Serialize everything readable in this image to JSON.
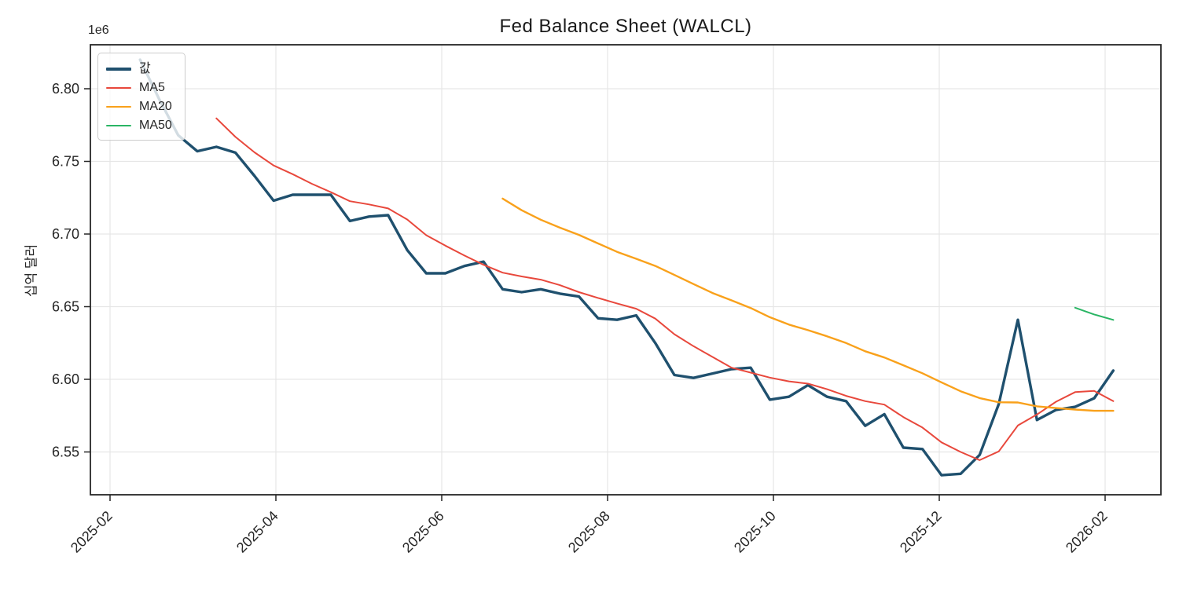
{
  "chart": {
    "title": "Fed Balance Sheet (WALCL)",
    "ylabel": "십억 달러",
    "y_offset_label": "1e6",
    "background_color": "#ffffff",
    "grid_color": "#e6e6e6",
    "spine_color": "#262626",
    "tick_text_color": "#262626"
  },
  "legend": {
    "position": "upper left",
    "items": [
      {
        "label": "값",
        "color": "#1f506e",
        "thickness": 4
      },
      {
        "label": "MA5",
        "color": "#e8483c",
        "thickness": 2
      },
      {
        "label": "MA20",
        "color": "#f9a11b",
        "thickness": 2.5
      },
      {
        "label": "MA50",
        "color": "#2ab564",
        "thickness": 2
      }
    ]
  },
  "chart_data": {
    "type": "line",
    "title": "Fed Balance Sheet (WALCL)",
    "xlabel": "",
    "ylabel": "십억 달러",
    "y_offset": "1e6",
    "grid": true,
    "legend_position": "upper left",
    "x_tick_labels": [
      "2025-02",
      "2025-04",
      "2025-06",
      "2025-08",
      "2025-10",
      "2025-12",
      "2026-02"
    ],
    "y_tick_labels": [
      "6.80",
      "6.75",
      "6.70",
      "6.65",
      "6.60",
      "6.55"
    ],
    "y_tick_values": [
      6800000,
      6750000,
      6700000,
      6650000,
      6600000,
      6550000
    ],
    "ylim": [
      6520000,
      6830000
    ],
    "x_range_dates": [
      "2025-02-01",
      "2026-02-01"
    ],
    "dates": [
      "2025-02-12",
      "2025-02-19",
      "2025-02-26",
      "2025-03-05",
      "2025-03-12",
      "2025-03-19",
      "2025-03-26",
      "2025-04-02",
      "2025-04-09",
      "2025-04-16",
      "2025-04-23",
      "2025-04-30",
      "2025-05-07",
      "2025-05-14",
      "2025-05-21",
      "2025-05-28",
      "2025-06-04",
      "2025-06-11",
      "2025-06-18",
      "2025-06-25",
      "2025-07-02",
      "2025-07-09",
      "2025-07-16",
      "2025-07-23",
      "2025-07-30",
      "2025-08-06",
      "2025-08-13",
      "2025-08-20",
      "2025-08-27",
      "2025-09-03",
      "2025-09-10",
      "2025-09-17",
      "2025-09-24",
      "2025-10-01",
      "2025-10-08",
      "2025-10-15",
      "2025-10-22",
      "2025-10-29",
      "2025-11-05",
      "2025-11-12",
      "2025-11-19",
      "2025-11-26",
      "2025-12-03",
      "2025-12-10",
      "2025-12-17",
      "2025-12-24",
      "2025-12-31",
      "2026-01-07",
      "2026-01-14",
      "2026-01-21",
      "2026-01-28",
      "2026-02-04"
    ],
    "series": [
      {
        "name": "값",
        "kind": "raw",
        "color": "#1f506e",
        "width": 3.4,
        "values": [
          6820000,
          6793000,
          6768000,
          6757000,
          6760000,
          6756000,
          6740000,
          6723000,
          6727000,
          6727000,
          6727000,
          6709000,
          6712000,
          6713000,
          6689000,
          6673000,
          6673000,
          6678000,
          6681000,
          6662000,
          6660000,
          6662000,
          6659000,
          6657000,
          6642000,
          6641000,
          6644000,
          6625000,
          6603000,
          6601000,
          6604000,
          6607000,
          6608000,
          6586000,
          6588000,
          6596000,
          6588000,
          6585000,
          6568000,
          6576000,
          6553000,
          6552000,
          6534000,
          6535000,
          6548000,
          6583000,
          6641000,
          6572000,
          6579000,
          6581000,
          6587000,
          6606000
        ]
      },
      {
        "name": "MA5",
        "kind": "moving_average",
        "window": 5,
        "source": "값",
        "color": "#e8483c",
        "width": 2
      },
      {
        "name": "MA20",
        "kind": "moving_average",
        "window": 20,
        "source": "값",
        "color": "#f9a11b",
        "width": 2.4
      },
      {
        "name": "MA50",
        "kind": "moving_average",
        "window": 50,
        "source": "값",
        "color": "#2ab564",
        "width": 2
      }
    ]
  }
}
